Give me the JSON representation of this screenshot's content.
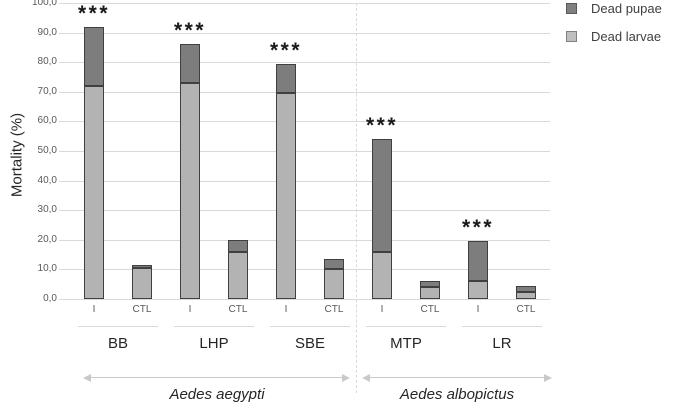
{
  "chart_data": {
    "type": "bar",
    "stacked": true,
    "title": "",
    "ylabel": "Mortality (%)",
    "ylim": [
      0,
      100
    ],
    "ytick_step": 10,
    "ytick_labels": [
      "0,0",
      "10,0",
      "20,0",
      "30,0",
      "40,0",
      "50,0",
      "60,0",
      "70,0",
      "80,0",
      "90,0",
      "100,0"
    ],
    "grid": true,
    "legend_position": "top-right",
    "condition_labels": [
      "I",
      "CTL"
    ],
    "series": [
      {
        "name": "Dead pupae",
        "stack_position": "top"
      },
      {
        "name": "Dead larvae",
        "stack_position": "bottom"
      }
    ],
    "groups": [
      {
        "name": "BB",
        "species": "Aedes aegypti",
        "bars": [
          {
            "condition": "I",
            "dead_larvae": 72,
            "dead_pupae": 20,
            "total": 92,
            "significance": "***"
          },
          {
            "condition": "CTL",
            "dead_larvae": 10.5,
            "dead_pupae": 1,
            "total": 11.5,
            "significance": ""
          }
        ]
      },
      {
        "name": "LHP",
        "species": "Aedes aegypti",
        "bars": [
          {
            "condition": "I",
            "dead_larvae": 73,
            "dead_pupae": 13,
            "total": 86,
            "significance": "***"
          },
          {
            "condition": "CTL",
            "dead_larvae": 16,
            "dead_pupae": 4,
            "total": 20,
            "significance": ""
          }
        ]
      },
      {
        "name": "SBE",
        "species": "Aedes aegypti",
        "bars": [
          {
            "condition": "I",
            "dead_larvae": 69.5,
            "dead_pupae": 10,
            "total": 79.5,
            "significance": "***"
          },
          {
            "condition": "CTL",
            "dead_larvae": 10,
            "dead_pupae": 3.5,
            "total": 13.5,
            "significance": ""
          }
        ]
      },
      {
        "name": "MTP",
        "species": "Aedes albopictus",
        "bars": [
          {
            "condition": "I",
            "dead_larvae": 16,
            "dead_pupae": 38,
            "total": 54,
            "significance": "***"
          },
          {
            "condition": "CTL",
            "dead_larvae": 4,
            "dead_pupae": 2,
            "total": 6,
            "significance": ""
          }
        ]
      },
      {
        "name": "LR",
        "species": "Aedes albopictus",
        "bars": [
          {
            "condition": "I",
            "dead_larvae": 6,
            "dead_pupae": 13.5,
            "total": 19.5,
            "significance": "***"
          },
          {
            "condition": "CTL",
            "dead_larvae": 2.5,
            "dead_pupae": 2,
            "total": 4.5,
            "significance": ""
          }
        ]
      }
    ],
    "sections": [
      {
        "label": "Aedes aegypti",
        "groups": [
          "BB",
          "LHP",
          "SBE"
        ]
      },
      {
        "label": "Aedes albopictus",
        "groups": [
          "MTP",
          "LR"
        ]
      }
    ]
  },
  "colors": {
    "dead_pupae_fill": "#7d7d7d",
    "dead_larvae_fill": "#b3b3b3",
    "bar_border": "#404040",
    "legend_pupae_fill": "#808080",
    "legend_larvae_fill": "#bfbfbf",
    "gridline": "#d9d9d9",
    "tick_text": "#595959",
    "label_text": "#262626",
    "section_arrow": "#c9c9c9",
    "significance_text": "#1a1a1a"
  }
}
